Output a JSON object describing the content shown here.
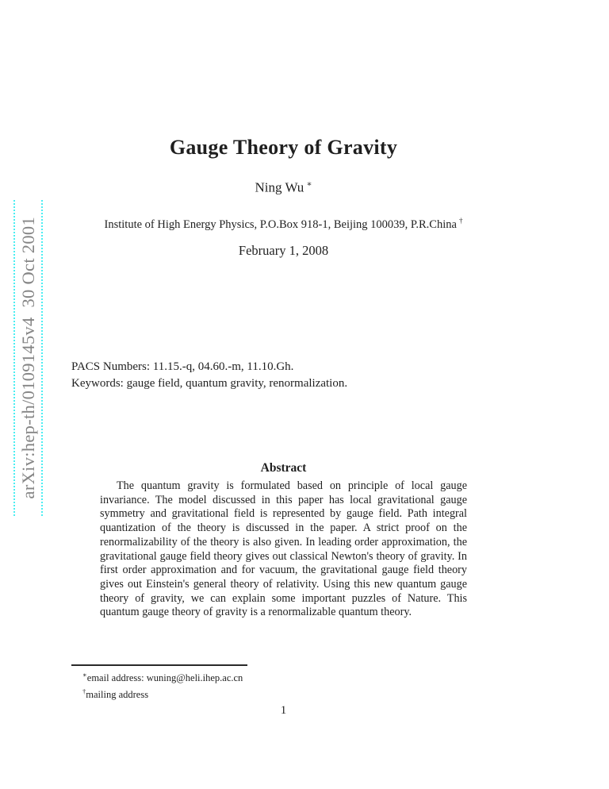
{
  "theme": {
    "page_background": "#ffffff",
    "text_color": "#1f1f1f",
    "watermark_text_color": "#858585",
    "watermark_dot_color": "#4beef2"
  },
  "watermark": {
    "text": "arXiv:hep-th/0109145v4  30 Oct 2001"
  },
  "header": {
    "title": "Gauge Theory of Gravity",
    "author": "Ning Wu",
    "author_note_symbol": "∗",
    "affiliation": "Institute of High Energy Physics, P.O.Box 918-1, Beijing 100039, P.R.China",
    "affiliation_note_symbol": "†",
    "date": "February 1, 2008"
  },
  "meta": {
    "pacs": "PACS Numbers: 11.15.-q, 04.60.-m, 11.10.Gh.",
    "keywords": "Keywords: gauge field, quantum gravity, renormalization."
  },
  "abstract": {
    "heading": "Abstract",
    "body": "The quantum gravity is formulated based on principle of local gauge invariance. The model discussed in this paper has local gravitational gauge symmetry and gravitational field is represented by gauge field. Path integral quantization of the theory is discussed in the paper. A strict proof on the renormalizability of the theory is also given. In leading order approximation, the gravitational gauge field theory gives out classical Newton's theory of gravity. In first order approximation and for vacuum, the gravitational gauge field theory gives out Einstein's general theory of relativity. Using this new quantum gauge theory of gravity, we can explain some important puzzles of Nature. This quantum gauge theory of gravity is a renormalizable quantum theory."
  },
  "footnotes": {
    "items": [
      {
        "symbol": "∗",
        "text": "email address: wuning@heli.ihep.ac.cn"
      },
      {
        "symbol": "†",
        "text": "mailing address"
      }
    ]
  },
  "page": {
    "number": "1"
  }
}
